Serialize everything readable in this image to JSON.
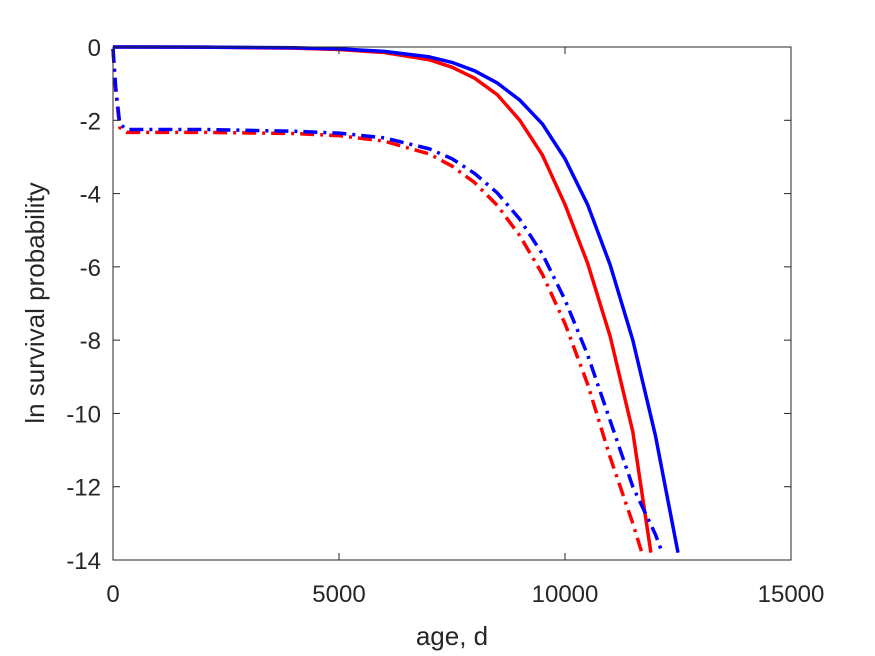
{
  "chart_data": {
    "type": "line",
    "title": "",
    "xlabel": "age, d",
    "ylabel": "ln survival probability",
    "xlim": [
      0,
      15000
    ],
    "ylim": [
      -14,
      0
    ],
    "xticks": [
      0,
      5000,
      10000,
      15000
    ],
    "yticks": [
      0,
      -2,
      -4,
      -6,
      -8,
      -10,
      -12,
      -14
    ],
    "xtick_labels": [
      "0",
      "5000",
      "10000",
      "15000"
    ],
    "ytick_labels": [
      "0",
      "-2",
      "-4",
      "-6",
      "-8",
      "-10",
      "-12",
      "-14"
    ],
    "grid": false,
    "legend": "none",
    "series": [
      {
        "color": "#ff0000",
        "style": "solid",
        "x": [
          0,
          2000,
          4000,
          5000,
          6000,
          7000,
          7500,
          8000,
          8500,
          9000,
          9500,
          10000,
          10500,
          11000,
          11500,
          11900
        ],
        "y": [
          0,
          -0.005,
          -0.03,
          -0.07,
          -0.15,
          -0.35,
          -0.55,
          -0.85,
          -1.3,
          -2.0,
          -2.95,
          -4.3,
          -5.9,
          -7.9,
          -10.5,
          -13.8
        ]
      },
      {
        "color": "#0000ff",
        "style": "solid",
        "x": [
          0,
          2000,
          4000,
          5000,
          6000,
          7000,
          7500,
          8000,
          8500,
          9000,
          9500,
          10000,
          10500,
          11000,
          11500,
          12000,
          12500
        ],
        "y": [
          0,
          -0.005,
          -0.02,
          -0.05,
          -0.12,
          -0.27,
          -0.42,
          -0.65,
          -0.98,
          -1.45,
          -2.1,
          -3.05,
          -4.3,
          -5.95,
          -8.0,
          -10.6,
          -13.8
        ]
      },
      {
        "color": "#ff0000",
        "style": "dashdot",
        "x": [
          0,
          60,
          150,
          300,
          2000,
          4000,
          5000,
          6000,
          7000,
          7500,
          8000,
          8500,
          9000,
          9500,
          10000,
          10500,
          11000,
          11500,
          11700
        ],
        "y": [
          -0.05,
          -1.2,
          -2.2,
          -2.33,
          -2.33,
          -2.36,
          -2.42,
          -2.57,
          -2.92,
          -3.25,
          -3.7,
          -4.32,
          -5.15,
          -6.2,
          -7.55,
          -9.2,
          -11.2,
          -13.0,
          -13.8
        ]
      },
      {
        "color": "#0000ff",
        "style": "dashdot",
        "x": [
          0,
          60,
          150,
          300,
          2000,
          4000,
          5000,
          6000,
          7000,
          7500,
          8000,
          8500,
          9000,
          9500,
          10000,
          10500,
          11000,
          11500,
          12000,
          12150
        ],
        "y": [
          -0.05,
          -1.1,
          -2.1,
          -2.25,
          -2.25,
          -2.3,
          -2.35,
          -2.48,
          -2.78,
          -3.05,
          -3.45,
          -3.98,
          -4.7,
          -5.65,
          -6.9,
          -8.4,
          -10.2,
          -12.0,
          -13.3,
          -13.8
        ]
      }
    ]
  }
}
